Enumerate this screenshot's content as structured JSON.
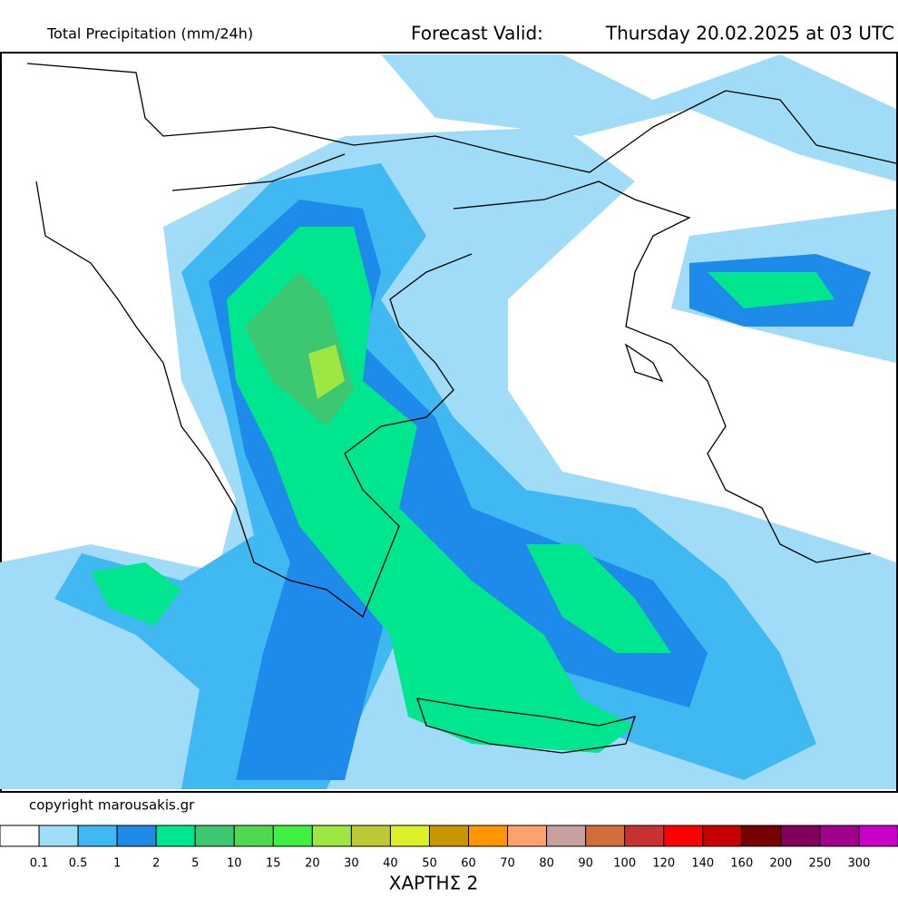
{
  "header": {
    "title": "Total Precipitation (mm/24h)",
    "valid_label": "Forecast Valid:",
    "valid_time": "Thursday 20.02.2025 at 03 UTC"
  },
  "copyright": "copyright marousakis.gr",
  "legend": {
    "labels": [
      "0.1",
      "0.5",
      "1",
      "2",
      "5",
      "10",
      "15",
      "20",
      "30",
      "40",
      "50",
      "60",
      "70",
      "80",
      "90",
      "100",
      "120",
      "140",
      "160",
      "200",
      "250",
      "300"
    ],
    "colors": [
      "#ffffff",
      "#a0dcf8",
      "#40b8f2",
      "#1e8aea",
      "#00e68e",
      "#3cc870",
      "#50d850",
      "#40f040",
      "#9ee642",
      "#bfc832",
      "#dcf02a",
      "#c89600",
      "#ff9600",
      "#ffa070",
      "#c8a0a0",
      "#d26e3c",
      "#c83232",
      "#ff0000",
      "#c80000",
      "#780000",
      "#82005a",
      "#a0008c",
      "#c800c8"
    ]
  },
  "footer": "ΧΑΡΤΗΣ 2"
}
